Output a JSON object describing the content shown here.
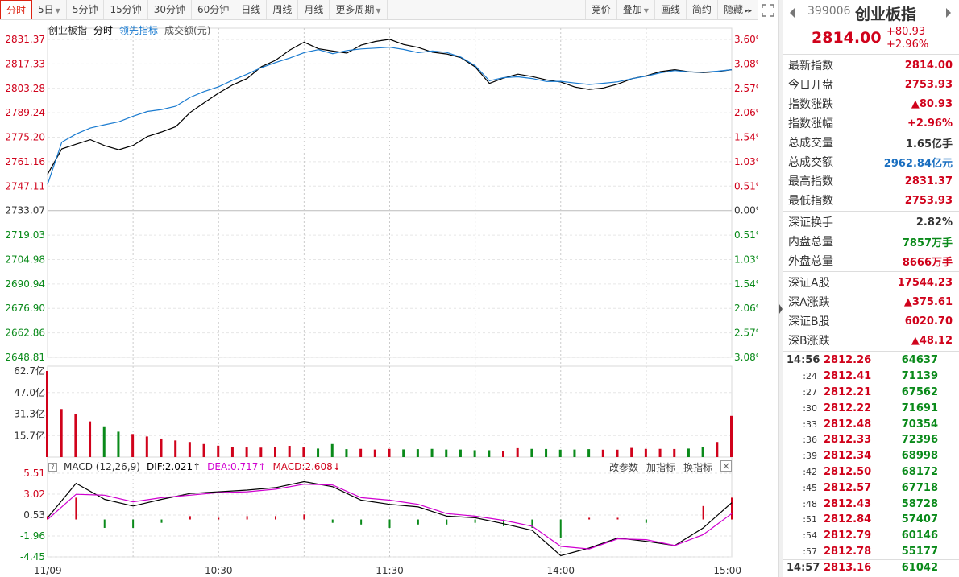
{
  "toolbar": {
    "tabs": [
      {
        "label": "分时",
        "active": true
      },
      {
        "label": "5日",
        "caret": true
      },
      {
        "label": "5分钟"
      },
      {
        "label": "15分钟"
      },
      {
        "label": "30分钟"
      },
      {
        "label": "60分钟"
      },
      {
        "label": "日线"
      },
      {
        "label": "周线"
      },
      {
        "label": "月线"
      },
      {
        "label": "更多周期",
        "caret": true
      }
    ],
    "right": [
      {
        "label": "竞价"
      },
      {
        "label": "叠加",
        "caret": true
      },
      {
        "label": "画线"
      },
      {
        "label": "简约"
      },
      {
        "label": "隐藏",
        "arrows": "▸▸"
      }
    ]
  },
  "legend": {
    "name": "创业板指",
    "mode": "分时",
    "lead": "领先指标",
    "volume": "成交额(元)"
  },
  "price_axis": {
    "left": [
      "2831.37",
      "2817.33",
      "2803.28",
      "2789.24",
      "2775.20",
      "2761.16",
      "2747.11",
      "2733.07",
      "2719.03",
      "2704.98",
      "2690.94",
      "2676.90",
      "2662.86",
      "2648.81"
    ],
    "right": [
      "3.60%",
      "3.08%",
      "2.57%",
      "2.06%",
      "1.54%",
      "1.03%",
      "0.51%",
      "0.00%",
      "0.51%",
      "1.03%",
      "1.54%",
      "2.06%",
      "2.57%",
      "3.08%"
    ]
  },
  "volume_axis": [
    "62.7亿",
    "47.0亿",
    "31.3亿",
    "15.7亿"
  ],
  "macd_axis": [
    "5.51",
    "3.02",
    "0.53",
    "-1.96",
    "-4.45"
  ],
  "time_axis": [
    "11/09",
    "10:30",
    "11:30",
    "14:00",
    "15:00"
  ],
  "macd": {
    "title": "MACD (12,26,9)",
    "dif_label": "DIF:2.021",
    "dea_label": "DEA:0.717",
    "macd_label": "MACD:2.608",
    "actions": [
      "改参数",
      "加指标",
      "换指标"
    ]
  },
  "colors": {
    "up": "#d0021b",
    "down": "#0a8a1a",
    "price_line": "#000000",
    "avg_line": "#1a7bd0",
    "dea_line": "#d000d0",
    "grid": "#e6e6e6"
  },
  "chart_data": [
    {
      "type": "line",
      "series": [
        {
          "name": "创业板指",
          "x": [
            0,
            5,
            10,
            15,
            20,
            25,
            30,
            35,
            40,
            45,
            50,
            55,
            60,
            65,
            70,
            75,
            80,
            85,
            90,
            95,
            100,
            105,
            110,
            115,
            120,
            125,
            130,
            135,
            140,
            145,
            150,
            155,
            160,
            165,
            170,
            175,
            180,
            185,
            190,
            195,
            200,
            205,
            210,
            215,
            220,
            225,
            230,
            235,
            240
          ],
          "values": [
            2753.9,
            2768.5,
            2771.2,
            2773.8,
            2770.4,
            2768.0,
            2770.5,
            2775.6,
            2778.2,
            2781.3,
            2789.4,
            2795.1,
            2800.6,
            2805.3,
            2808.9,
            2815.7,
            2819.4,
            2825.3,
            2829.8,
            2826.0,
            2824.7,
            2823.5,
            2828.1,
            2830.2,
            2831.4,
            2828.4,
            2826.8,
            2824.0,
            2823.0,
            2820.9,
            2815.6,
            2806.1,
            2809.2,
            2811.4,
            2810.0,
            2808.1,
            2806.9,
            2804.0,
            2802.6,
            2803.5,
            2805.7,
            2808.8,
            2810.5,
            2812.9,
            2814.0,
            2812.8,
            2812.3,
            2812.9,
            2814.0
          ]
        },
        {
          "name": "领先指标",
          "x": [
            0,
            5,
            10,
            15,
            20,
            25,
            30,
            35,
            40,
            45,
            50,
            55,
            60,
            65,
            70,
            75,
            80,
            85,
            90,
            95,
            100,
            105,
            110,
            115,
            120,
            125,
            130,
            135,
            140,
            145,
            150,
            155,
            160,
            165,
            170,
            175,
            180,
            185,
            190,
            195,
            200,
            205,
            210,
            215,
            220,
            225,
            230,
            235,
            240
          ],
          "values": [
            2748.1,
            2772.4,
            2777.0,
            2780.5,
            2782.4,
            2784.1,
            2787.3,
            2790.0,
            2791.1,
            2793.0,
            2798.1,
            2801.5,
            2804.2,
            2808.0,
            2811.4,
            2815.2,
            2818.1,
            2820.7,
            2823.8,
            2825.5,
            2823.2,
            2825.0,
            2825.9,
            2826.4,
            2826.9,
            2825.6,
            2823.8,
            2824.7,
            2823.9,
            2821.2,
            2816.3,
            2807.6,
            2809.4,
            2809.9,
            2808.9,
            2807.2,
            2807.3,
            2806.3,
            2805.5,
            2806.2,
            2807.0,
            2808.8,
            2810.3,
            2812.2,
            2813.5,
            2812.7,
            2812.5,
            2813.1,
            2814.0
          ]
        }
      ],
      "ylim": [
        2648.81,
        2831.37
      ]
    },
    {
      "type": "bar",
      "x": [
        0,
        5,
        10,
        15,
        20,
        25,
        30,
        35,
        40,
        45,
        50,
        55,
        60,
        65,
        70,
        75,
        80,
        85,
        90,
        95,
        100,
        105,
        110,
        115,
        120,
        125,
        130,
        135,
        140,
        145,
        150,
        155,
        160,
        165,
        170,
        175,
        180,
        185,
        190,
        195,
        200,
        205,
        210,
        215,
        220,
        225,
        230,
        235,
        240
      ],
      "values": [
        62.7,
        35.0,
        31.5,
        26.0,
        22.4,
        18.5,
        16.8,
        15.0,
        13.5,
        12.1,
        11.0,
        9.5,
        8.3,
        7.2,
        7.0,
        6.9,
        7.6,
        8.2,
        7.0,
        6.2,
        9.5,
        5.8,
        6.0,
        5.5,
        6.0,
        5.6,
        5.8,
        6.0,
        5.5,
        5.5,
        5.0,
        5.0,
        4.6,
        6.5,
        6.0,
        5.9,
        5.4,
        5.5,
        5.8,
        5.4,
        5.4,
        6.7,
        6.0,
        6.0,
        5.9,
        6.2,
        7.5,
        11.0,
        30.0
      ],
      "ylim": [
        0,
        62.7
      ]
    },
    {
      "type": "line",
      "series": [
        {
          "name": "DIF",
          "x": [
            0,
            10,
            20,
            30,
            40,
            50,
            60,
            70,
            80,
            90,
            100,
            110,
            120,
            130,
            140,
            150,
            160,
            170,
            180,
            190,
            200,
            210,
            220,
            230,
            240
          ],
          "values": [
            0.2,
            4.3,
            2.4,
            1.6,
            2.4,
            3.1,
            3.3,
            3.5,
            3.8,
            4.5,
            3.9,
            2.3,
            1.8,
            1.5,
            0.4,
            0.2,
            -0.5,
            -1.3,
            -4.3,
            -3.4,
            -2.2,
            -2.6,
            -3.1,
            -1.0,
            2.0
          ]
        },
        {
          "name": "DEA",
          "x": [
            0,
            10,
            20,
            30,
            40,
            50,
            60,
            70,
            80,
            90,
            100,
            110,
            120,
            130,
            140,
            150,
            160,
            170,
            180,
            190,
            200,
            210,
            220,
            230,
            240
          ],
          "values": [
            0.0,
            3.0,
            2.9,
            2.1,
            2.6,
            2.9,
            3.2,
            3.3,
            3.6,
            4.2,
            4.1,
            2.6,
            2.3,
            1.8,
            0.7,
            0.4,
            -0.1,
            -0.8,
            -3.2,
            -3.5,
            -2.3,
            -2.4,
            -3.1,
            -1.8,
            0.7
          ]
        },
        {
          "name": "MACD",
          "x": [
            0,
            10,
            20,
            30,
            40,
            50,
            60,
            70,
            80,
            90,
            100,
            110,
            120,
            130,
            140,
            150,
            160,
            170,
            180,
            190,
            200,
            210,
            220,
            230,
            240
          ],
          "values": [
            0.4,
            2.6,
            -1.0,
            -1.0,
            -0.4,
            0.4,
            0.2,
            0.4,
            0.4,
            0.6,
            -0.4,
            -0.6,
            -1.0,
            -0.6,
            -0.6,
            -0.4,
            -0.8,
            -1.0,
            -2.2,
            0.2,
            0.2,
            -0.4,
            0.0,
            1.6,
            2.6
          ]
        }
      ],
      "ylim": [
        -4.45,
        5.51
      ]
    }
  ],
  "panel": {
    "code": "399006",
    "name": "创业板指",
    "price": "2814.00",
    "change": "+80.93",
    "change_pct": "+2.96%",
    "groups": [
      [
        {
          "label": "最新指数",
          "value": "2814.00",
          "color": "red"
        },
        {
          "label": "今日开盘",
          "value": "2753.93",
          "color": "red"
        },
        {
          "label": "指数涨跌",
          "value": "▲80.93",
          "color": "red"
        },
        {
          "label": "指数涨幅",
          "value": "+2.96%",
          "color": "red"
        },
        {
          "label": "总成交量",
          "value": "1.65亿手",
          "color": "dark"
        },
        {
          "label": "总成交额",
          "value": "2962.84亿元",
          "color": "blue"
        },
        {
          "label": "最高指数",
          "value": "2831.37",
          "color": "red"
        },
        {
          "label": "最低指数",
          "value": "2753.93",
          "color": "red"
        }
      ],
      [
        {
          "label": "深证换手",
          "value": "2.82%",
          "color": "dark"
        },
        {
          "label": "内盘总量",
          "value": "7857万手",
          "color": "green"
        },
        {
          "label": "外盘总量",
          "value": "8666万手",
          "color": "red"
        }
      ],
      [
        {
          "label": "深证A股",
          "value": "17544.23",
          "color": "red"
        },
        {
          "label": "深A涨跌",
          "value": "▲375.61",
          "color": "red"
        },
        {
          "label": "深证B股",
          "value": "6020.70",
          "color": "red"
        },
        {
          "label": "深B涨跌",
          "value": "▲48.12",
          "color": "red"
        }
      ]
    ],
    "ticks": [
      {
        "t": "14:56",
        "p": "2812.26",
        "v": "64637",
        "major": true
      },
      {
        "t": ":24",
        "p": "2812.41",
        "v": "71139"
      },
      {
        "t": ":27",
        "p": "2812.21",
        "v": "67562"
      },
      {
        "t": ":30",
        "p": "2812.22",
        "v": "71691"
      },
      {
        "t": ":33",
        "p": "2812.48",
        "v": "70354"
      },
      {
        "t": ":36",
        "p": "2812.33",
        "v": "72396"
      },
      {
        "t": ":39",
        "p": "2812.34",
        "v": "68998"
      },
      {
        "t": ":42",
        "p": "2812.50",
        "v": "68172"
      },
      {
        "t": ":45",
        "p": "2812.57",
        "v": "67718"
      },
      {
        "t": ":48",
        "p": "2812.43",
        "v": "58728"
      },
      {
        "t": ":51",
        "p": "2812.84",
        "v": "57407"
      },
      {
        "t": ":54",
        "p": "2812.79",
        "v": "60146"
      },
      {
        "t": ":57",
        "p": "2812.78",
        "v": "55177"
      },
      {
        "t": "14:57",
        "p": "2813.16",
        "v": "61042",
        "major": true
      }
    ]
  }
}
